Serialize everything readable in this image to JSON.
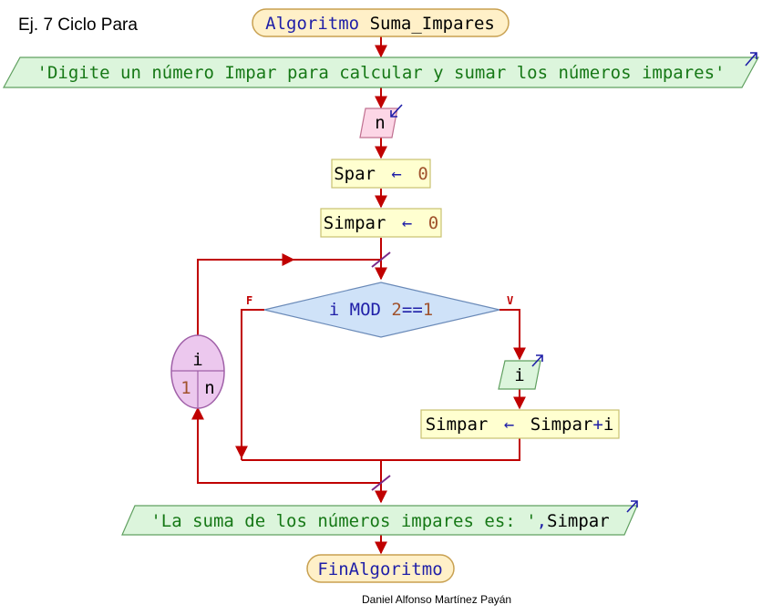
{
  "title": "Ej. 7 Ciclo Para",
  "author": "Daniel Alfonso Martínez Payán",
  "colors": {
    "flow_line": "#c00000",
    "keyword_blue": "#1f1fa8",
    "string_green": "#167816",
    "number_brown": "#a0522d",
    "terminator_fill": "#fff0c8",
    "terminator_stroke": "#c8a050",
    "io_fill": "#dcf5dc",
    "io_stroke": "#60a060",
    "read_fill": "#fcd6e6",
    "read_stroke": "#c07090",
    "process_fill": "#ffffd0",
    "process_stroke": "#c8c070",
    "decision_fill": "#cfe2f8",
    "decision_stroke": "#6a8ab8",
    "loop_fill": "#ecc8ee",
    "loop_stroke": "#a060a8"
  },
  "start": {
    "keyword": "Algoritmo",
    "name": "Suma_Impares"
  },
  "write1": {
    "text": "'Digite un número Impar para calcular y sumar los números impares'"
  },
  "read1": {
    "var": "n"
  },
  "assign1": {
    "var": "Spar",
    "arrow": "←",
    "value": "0"
  },
  "assign2": {
    "var": "Simpar",
    "arrow": "←",
    "value": "0"
  },
  "decision": {
    "left": "i MOD ",
    "num": "2",
    "op": "==",
    "right": "1",
    "false_label": "F",
    "true_label": "V"
  },
  "write_i": {
    "var": "i"
  },
  "assign3": {
    "var": "Simpar",
    "arrow": "←",
    "expr": "Simpar",
    "plus": "+",
    "term": "i"
  },
  "loop": {
    "var": "i",
    "from": "1",
    "to": "n"
  },
  "write2": {
    "text": "'La suma de los números impares es: '",
    "sep": ",",
    "var": "Simpar"
  },
  "end": {
    "keyword": "FinAlgoritmo"
  }
}
